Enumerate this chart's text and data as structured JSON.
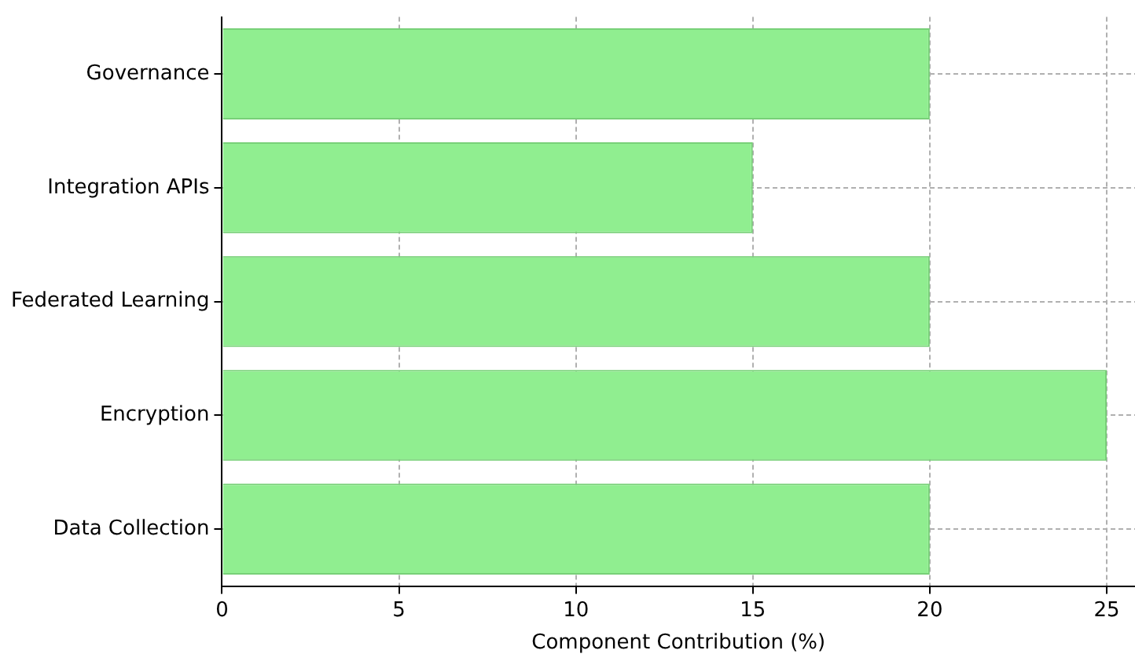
{
  "chart_data": {
    "type": "bar",
    "orientation": "horizontal",
    "xlabel": "Component Contribution (%)",
    "categories": [
      "Governance",
      "Integration APIs",
      "Federated Learning",
      "Encryption",
      "Data Collection"
    ],
    "values": [
      20,
      15,
      20,
      25,
      20
    ],
    "color": "#90ee90",
    "xlim": [
      0,
      25.8
    ],
    "xticks": [
      0,
      5,
      10,
      15,
      20,
      25
    ],
    "grid": true,
    "legend": false
  }
}
